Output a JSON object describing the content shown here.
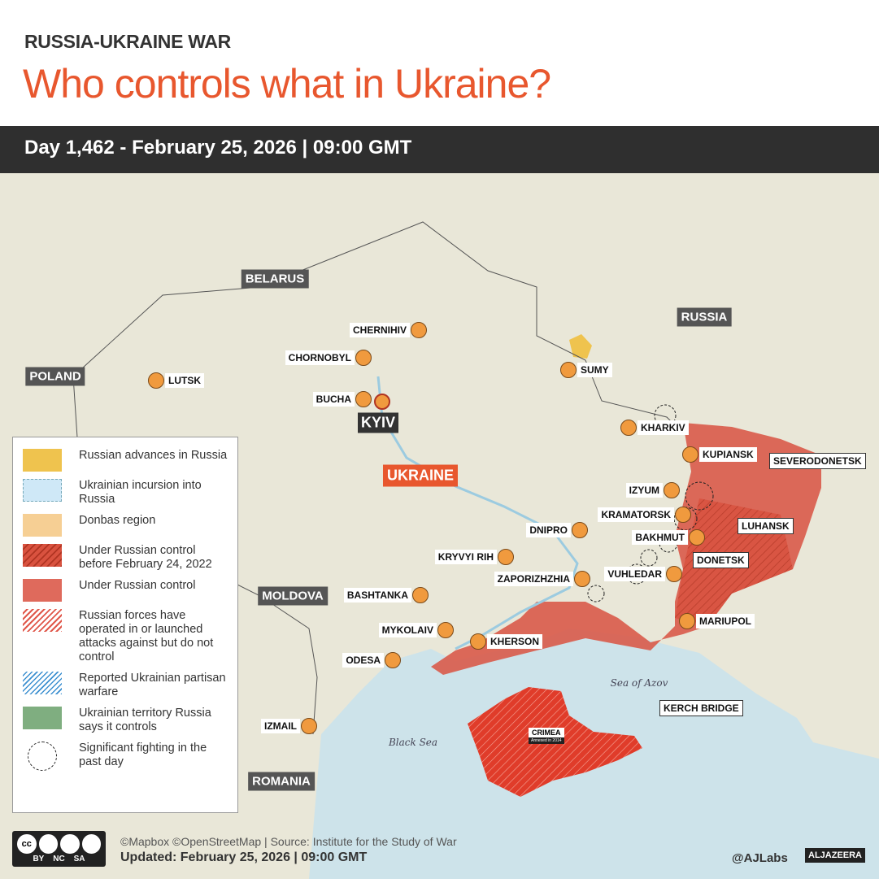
{
  "header": {
    "kicker": "RUSSIA-UKRAINE WAR",
    "title": "Who controls what in Ukraine?",
    "dateline": "Day 1,462 - February 25, 2026  |  09:00 GMT"
  },
  "colors": {
    "accent": "#e8572e",
    "occupied": "#d95a4a",
    "crimea": "#e03c2a",
    "city": "#f09a3e",
    "sea": "#cde3ea",
    "land": "#e9e7d8"
  },
  "countries": [
    {
      "name": "BELARUS"
    },
    {
      "name": "RUSSIA"
    },
    {
      "name": "POLAND"
    },
    {
      "name": "UKRAINE"
    },
    {
      "name": "MOLDOVA"
    },
    {
      "name": "ROMANIA"
    }
  ],
  "cities": [
    {
      "name": "CHERNIHIV"
    },
    {
      "name": "CHORNOBYL"
    },
    {
      "name": "LUTSK"
    },
    {
      "name": "BUCHA"
    },
    {
      "name": "KYIV"
    },
    {
      "name": "SUMY"
    },
    {
      "name": "KHARKIV"
    },
    {
      "name": "KUPIANSK"
    },
    {
      "name": "SEVERODONETSK"
    },
    {
      "name": "IZYUM"
    },
    {
      "name": "KRAMATORSK"
    },
    {
      "name": "BAKHMUT"
    },
    {
      "name": "LUHANSK"
    },
    {
      "name": "DNIPRO"
    },
    {
      "name": "KRYVYI RIH"
    },
    {
      "name": "DONETSK"
    },
    {
      "name": "VUHLEDAR"
    },
    {
      "name": "ZAPORIZHZHIA"
    },
    {
      "name": "BASHTANKA"
    },
    {
      "name": "MYKOLAIV"
    },
    {
      "name": "KHERSON"
    },
    {
      "name": "ODESA"
    },
    {
      "name": "MARIUPOL"
    },
    {
      "name": "IZMAIL"
    }
  ],
  "water": {
    "azov": "Sea of Azov",
    "black": "Black Sea"
  },
  "crimea": {
    "name": "CRIMEA",
    "note": "Annexed in 2014"
  },
  "kerch": "KERCH BRIDGE",
  "legend": [
    {
      "label": "Russian advances in Russia",
      "swatch": "#efc34e"
    },
    {
      "label": "Ukrainian incursion into Russia",
      "swatch": "#cfe8f7"
    },
    {
      "label": "Donbas region",
      "swatch": "#f6cf94"
    },
    {
      "label": "Under Russian control before February 24, 2022",
      "swatch": "hatch-dark"
    },
    {
      "label": "Under Russian control",
      "swatch": "#df6a5c"
    },
    {
      "label": "Russian forces have operated in or launched attacks against but do not control",
      "swatch": "hatch-light"
    },
    {
      "label": "Reported Ukrainian partisan warfare",
      "swatch": "hatch-blue"
    },
    {
      "label": "Ukrainian territory Russia says it controls",
      "swatch": "#7fae80"
    },
    {
      "label": "Significant fighting in the past day",
      "swatch": "dashed-circle"
    }
  ],
  "footer": {
    "credit": "©Mapbox ©OpenStreetMap | Source: Institute for the Study of War",
    "updated": "Updated:  February 25, 2026  |  09:00 GMT",
    "license": [
      "BY",
      "NC",
      "SA"
    ],
    "handle": "@AJLabs",
    "brand": "ALJAZEERA"
  }
}
